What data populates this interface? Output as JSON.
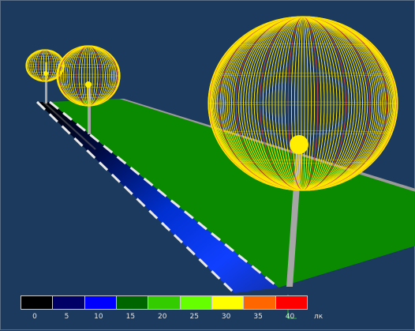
{
  "view": {
    "background": "#1b3a5e",
    "ground_color": "#0a8a00",
    "road_color": "#1030c8",
    "pole_color": "#a6a6a6",
    "lamp_color": "#ffee00",
    "photometric_solid_color": "#ffe600",
    "photometric_accent_color": "#d24b3c"
  },
  "legend": {
    "unit": "лк",
    "colors": [
      "#000000",
      "#000066",
      "#0000ff",
      "#006600",
      "#33cc00",
      "#66ff00",
      "#ffff00",
      "#ff6600",
      "#ff0000"
    ],
    "ticks": [
      "0",
      "5",
      "10",
      "15",
      "20",
      "25",
      "30",
      "35",
      "40"
    ]
  }
}
